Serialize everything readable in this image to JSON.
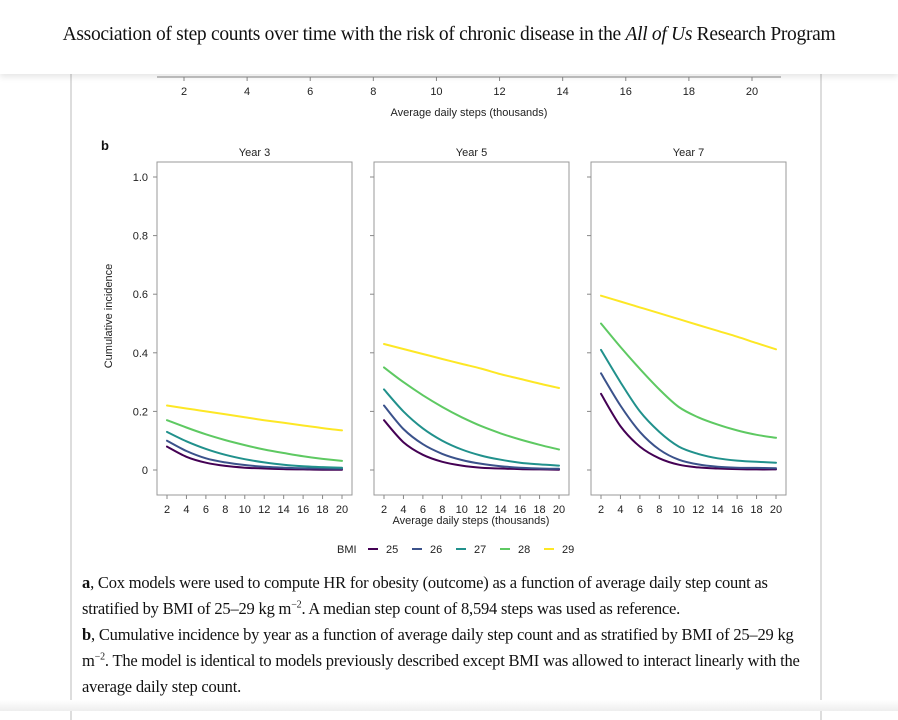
{
  "header": {
    "title_pre": "Association of step counts over time with the risk of chronic disease in the ",
    "title_italic": "All of Us",
    "title_post": " Research Program"
  },
  "panel_a_partial": {
    "x_ticks": [
      "2",
      "4",
      "6",
      "8",
      "10",
      "12",
      "14",
      "16",
      "18",
      "20"
    ],
    "xlabel": "Average daily steps (thousands)"
  },
  "panel_b_label": "b",
  "chart_data": {
    "type": "line",
    "title": "Cumulative incidence by year",
    "ylabel": "Cumulative incidence",
    "xlabel": "Average daily steps (thousands)",
    "ylim": [
      0,
      1.0
    ],
    "xlim": [
      2,
      20
    ],
    "y_ticks": [
      "0",
      "0.2",
      "0.4",
      "0.6",
      "0.8",
      "1.0"
    ],
    "y_tick_values": [
      0,
      0.2,
      0.4,
      0.6,
      0.8,
      1.0
    ],
    "x_ticks": [
      "2",
      "4",
      "6",
      "8",
      "10",
      "12",
      "14",
      "16",
      "18",
      "20"
    ],
    "x": [
      2,
      4,
      6,
      8,
      10,
      12,
      14,
      16,
      18,
      20
    ],
    "grid": false,
    "legend": {
      "title": "BMI",
      "placement": "bottom",
      "entries": [
        "25",
        "26",
        "27",
        "28",
        "29"
      ]
    },
    "colors": {
      "25": "#440154",
      "26": "#3b528b",
      "27": "#21918c",
      "28": "#5ec962",
      "29": "#fde725"
    },
    "panels": [
      {
        "title": "Year 3",
        "series": [
          {
            "name": "25",
            "values": [
              0.08,
              0.045,
              0.025,
              0.014,
              0.008,
              0.005,
              0.003,
              0.002,
              0.001,
              0.001
            ]
          },
          {
            "name": "26",
            "values": [
              0.1,
              0.065,
              0.04,
              0.026,
              0.017,
              0.011,
              0.008,
              0.006,
              0.005,
              0.004
            ]
          },
          {
            "name": "27",
            "values": [
              0.13,
              0.098,
              0.072,
              0.052,
              0.037,
              0.026,
              0.018,
              0.013,
              0.01,
              0.008
            ]
          },
          {
            "name": "28",
            "values": [
              0.17,
              0.145,
              0.122,
              0.102,
              0.085,
              0.07,
              0.058,
              0.047,
              0.038,
              0.031
            ]
          },
          {
            "name": "29",
            "values": [
              0.22,
              0.21,
              0.2,
              0.19,
              0.18,
              0.17,
              0.161,
              0.152,
              0.143,
              0.135
            ]
          }
        ]
      },
      {
        "title": "Year 5",
        "series": [
          {
            "name": "25",
            "values": [
              0.17,
              0.095,
              0.052,
              0.028,
              0.015,
              0.008,
              0.005,
              0.003,
              0.002,
              0.001
            ]
          },
          {
            "name": "26",
            "values": [
              0.22,
              0.14,
              0.088,
              0.055,
              0.034,
              0.021,
              0.013,
              0.008,
              0.005,
              0.004
            ]
          },
          {
            "name": "27",
            "values": [
              0.275,
              0.2,
              0.142,
              0.1,
              0.07,
              0.049,
              0.035,
              0.025,
              0.019,
              0.015
            ]
          },
          {
            "name": "28",
            "values": [
              0.35,
              0.3,
              0.255,
              0.215,
              0.18,
              0.15,
              0.125,
              0.104,
              0.086,
              0.07
            ]
          },
          {
            "name": "29",
            "values": [
              0.43,
              0.413,
              0.396,
              0.379,
              0.362,
              0.346,
              0.327,
              0.311,
              0.295,
              0.28
            ]
          }
        ]
      },
      {
        "title": "Year 7",
        "series": [
          {
            "name": "25",
            "values": [
              0.26,
              0.15,
              0.08,
              0.04,
              0.018,
              0.009,
              0.005,
              0.003,
              0.002,
              0.002
            ]
          },
          {
            "name": "26",
            "values": [
              0.33,
              0.22,
              0.13,
              0.07,
              0.035,
              0.019,
              0.011,
              0.008,
              0.007,
              0.006
            ]
          },
          {
            "name": "27",
            "values": [
              0.41,
              0.3,
              0.2,
              0.13,
              0.08,
              0.055,
              0.04,
              0.032,
              0.028,
              0.025
            ]
          },
          {
            "name": "28",
            "values": [
              0.5,
              0.42,
              0.345,
              0.275,
              0.215,
              0.18,
              0.155,
              0.135,
              0.12,
              0.11
            ]
          },
          {
            "name": "29",
            "values": [
              0.595,
              0.575,
              0.555,
              0.535,
              0.515,
              0.495,
              0.475,
              0.455,
              0.433,
              0.412
            ]
          }
        ]
      }
    ]
  },
  "caption": {
    "a_label": "a",
    "a_text_1": ", Cox models were used to compute HR for obesity (outcome) as a function of average daily step count as stratified by BMI of 25–29 kg m",
    "a_sup": "−2",
    "a_text_2": ". A median step count of 8,594 steps was used as reference.",
    "b_label": "b",
    "b_text_1": ", Cumulative incidence by year as a function of average daily step count and as stratified by BMI of 25–29 kg m",
    "b_sup": "−2",
    "b_text_2": ". The model is identical to models previously described except BMI was allowed to interact linearly with the average daily step count."
  }
}
